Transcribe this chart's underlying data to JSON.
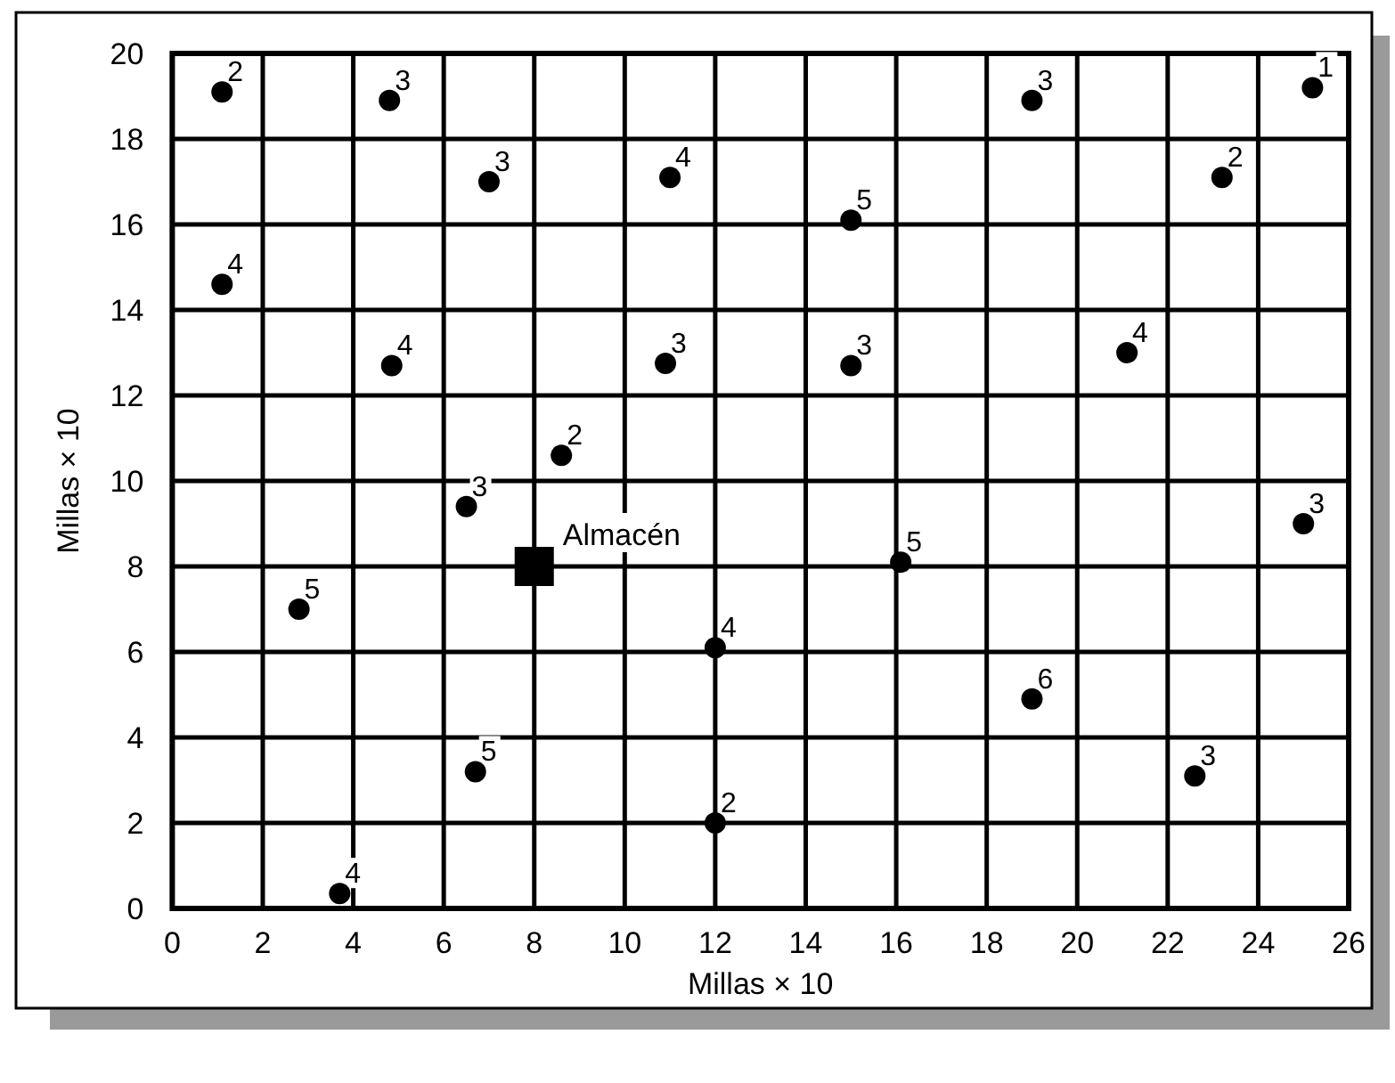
{
  "chart_data": {
    "type": "scatter",
    "xlabel": "Millas × 10",
    "ylabel": "Millas × 10",
    "xlim": [
      0,
      26
    ],
    "ylim": [
      0,
      20
    ],
    "xticks": [
      0,
      2,
      4,
      6,
      8,
      10,
      12,
      14,
      16,
      18,
      20,
      22,
      24,
      26
    ],
    "yticks": [
      0,
      2,
      4,
      6,
      8,
      10,
      12,
      14,
      16,
      18,
      20
    ],
    "grid": true,
    "series": [
      {
        "type": "scatter",
        "marker": "circle",
        "color": "#000000",
        "x": [
          1.1,
          4.8,
          7,
          11,
          1.1,
          4.85,
          10.9,
          8.6,
          6.5,
          19,
          25.2,
          23.2,
          15,
          15,
          21.1,
          25,
          16.1,
          19,
          22.6,
          2.8,
          12,
          6.7,
          12,
          3.7
        ],
        "values": [
          19.1,
          18.9,
          17,
          17.1,
          14.6,
          12.7,
          12.75,
          10.6,
          9.4,
          18.9,
          19.2,
          17.1,
          16.1,
          12.7,
          13,
          9,
          8.1,
          4.9,
          3.1,
          7,
          6.1,
          3.2,
          2,
          0.35
        ]
      },
      {
        "type": "scatter",
        "marker": "square",
        "name": "Almacén",
        "color": "#000000",
        "x": [
          8
        ],
        "values": [
          8
        ]
      }
    ],
    "annotations": [
      {
        "text": "2",
        "x": 1.1,
        "y": 19.1
      },
      {
        "text": "3",
        "x": 4.8,
        "y": 18.9
      },
      {
        "text": "3",
        "x": 7,
        "y": 17
      },
      {
        "text": "4",
        "x": 11,
        "y": 17.1
      },
      {
        "text": "4",
        "x": 1.1,
        "y": 14.6
      },
      {
        "text": "4",
        "x": 4.85,
        "y": 12.7
      },
      {
        "text": "3",
        "x": 10.9,
        "y": 12.75
      },
      {
        "text": "2",
        "x": 8.6,
        "y": 10.6
      },
      {
        "text": "3",
        "x": 6.5,
        "y": 9.4
      },
      {
        "text": "3",
        "x": 19,
        "y": 18.9
      },
      {
        "text": "1",
        "x": 25.2,
        "y": 19.2
      },
      {
        "text": "2",
        "x": 23.2,
        "y": 17.1
      },
      {
        "text": "5",
        "x": 15,
        "y": 16.1
      },
      {
        "text": "3",
        "x": 15,
        "y": 12.7
      },
      {
        "text": "4",
        "x": 21.1,
        "y": 13
      },
      {
        "text": "3",
        "x": 25,
        "y": 9
      },
      {
        "text": "5",
        "x": 16.1,
        "y": 8.1
      },
      {
        "text": "6",
        "x": 19,
        "y": 4.9
      },
      {
        "text": "3",
        "x": 22.6,
        "y": 3.1
      },
      {
        "text": "5",
        "x": 2.8,
        "y": 7
      },
      {
        "text": "4",
        "x": 12,
        "y": 6.1
      },
      {
        "text": "5",
        "x": 6.7,
        "y": 3.2
      },
      {
        "text": "2",
        "x": 12,
        "y": 2
      },
      {
        "text": "4",
        "x": 3.7,
        "y": 0.35
      }
    ]
  }
}
